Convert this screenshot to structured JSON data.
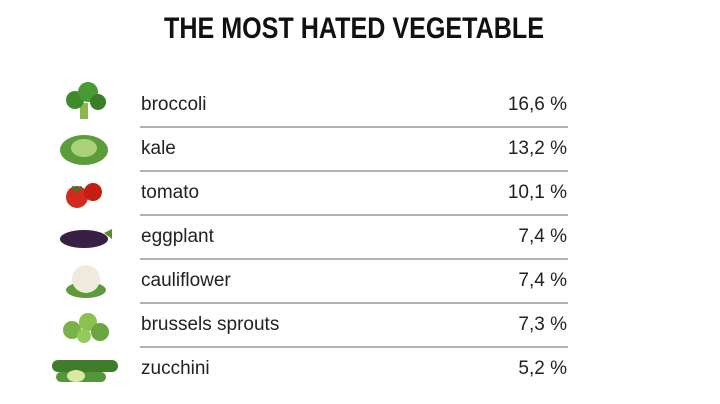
{
  "title": "THE MOST HATED VEGETABLE",
  "table": {
    "rows": [
      {
        "label": "broccoli",
        "value": "16,6 %"
      },
      {
        "label": "kale",
        "value": "13,2 %"
      },
      {
        "label": "tomato",
        "value": "10,1 %"
      },
      {
        "label": "eggplant",
        "value": "7,4 %"
      },
      {
        "label": "cauliflower",
        "value": "7,4 %"
      },
      {
        "label": "brussels sprouts",
        "value": "7,3 %"
      },
      {
        "label": "zucchini",
        "value": "5,2 %"
      }
    ]
  }
}
